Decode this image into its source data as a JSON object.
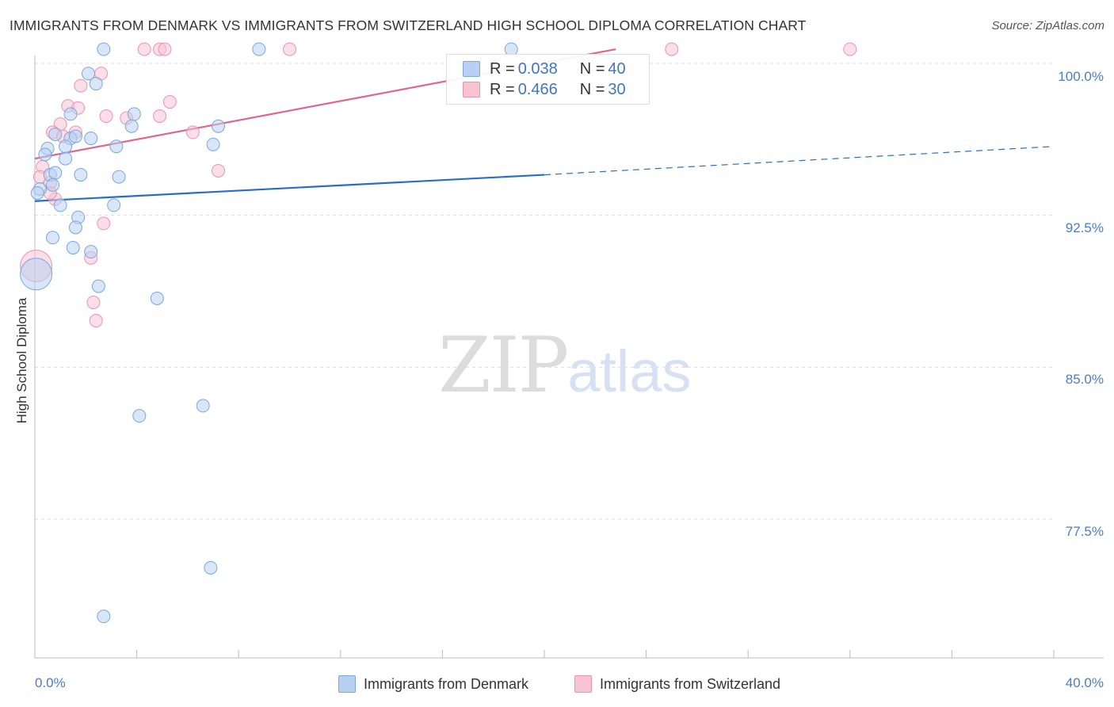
{
  "title": "IMMIGRANTS FROM DENMARK VS IMMIGRANTS FROM SWITZERLAND HIGH SCHOOL DIPLOMA CORRELATION CHART",
  "source": "Source: ZipAtlas.com",
  "watermark": {
    "zip": "ZIP",
    "atlas": "atlas"
  },
  "colors": {
    "denmark_fill": "#b8d1f3",
    "denmark_stroke": "#7aa6e2",
    "denmark_line": "#2a6ccc",
    "switzerland_fill": "#f7c3d3",
    "switzerland_stroke": "#ec93b0",
    "switzerland_line": "#e0668f",
    "tick_text": "#4a7bd0",
    "grid": "#dddddd"
  },
  "legend": {
    "rows": [
      {
        "r_label": "R = ",
        "r_value": "0.038",
        "n_label": "N = ",
        "n_value": "40"
      },
      {
        "r_label": "R = ",
        "r_value": "0.466",
        "n_label": "N = ",
        "n_value": "30"
      }
    ]
  },
  "chart_data": {
    "type": "scatter",
    "title": "IMMIGRANTS FROM DENMARK VS IMMIGRANTS FROM SWITZERLAND HIGH SCHOOL DIPLOMA CORRELATION CHART",
    "xlabel": "",
    "ylabel": "High School Diploma",
    "xlim": [
      0,
      40
    ],
    "ylim": [
      71,
      100.7
    ],
    "x_tick_labels": [
      "0.0%",
      "40.0%"
    ],
    "y_ticks": [
      77.5,
      85.0,
      92.5,
      100.0
    ],
    "y_tick_labels": [
      "77.5%",
      "85.0%",
      "92.5%",
      "100.0%"
    ],
    "legend_position": "bottom-center",
    "series": [
      {
        "name": "Immigrants from Denmark",
        "r": 0.038,
        "n": 40,
        "points": [
          [
            2.7,
            100.7
          ],
          [
            8.8,
            100.7
          ],
          [
            18.7,
            100.7
          ],
          [
            2.1,
            99.5
          ],
          [
            2.4,
            99.0
          ],
          [
            1.4,
            97.5
          ],
          [
            3.9,
            97.5
          ],
          [
            0.8,
            96.5
          ],
          [
            3.8,
            96.9
          ],
          [
            7.2,
            96.9
          ],
          [
            1.4,
            96.3
          ],
          [
            1.6,
            96.4
          ],
          [
            2.2,
            96.3
          ],
          [
            0.5,
            95.8
          ],
          [
            1.2,
            95.9
          ],
          [
            3.2,
            95.9
          ],
          [
            7.0,
            96.0
          ],
          [
            0.4,
            95.5
          ],
          [
            1.2,
            95.3
          ],
          [
            0.6,
            94.5
          ],
          [
            0.8,
            94.6
          ],
          [
            1.8,
            94.5
          ],
          [
            3.3,
            94.4
          ],
          [
            0.2,
            93.8
          ],
          [
            0.7,
            94.0
          ],
          [
            0.1,
            93.6
          ],
          [
            1.0,
            93.0
          ],
          [
            3.1,
            93.0
          ],
          [
            1.7,
            92.4
          ],
          [
            1.6,
            91.9
          ],
          [
            0.7,
            91.4
          ],
          [
            1.5,
            90.9
          ],
          [
            2.2,
            90.7
          ],
          [
            0.05,
            89.6
          ],
          [
            2.5,
            89.0
          ],
          [
            4.8,
            88.4
          ],
          [
            4.1,
            82.6
          ],
          [
            6.6,
            83.1
          ],
          [
            6.9,
            75.1
          ],
          [
            2.7,
            72.7
          ]
        ],
        "trend": {
          "x": [
            0,
            20
          ],
          "y": [
            93.2,
            94.5
          ]
        },
        "trend_extension": {
          "x": [
            20,
            40
          ],
          "y": [
            94.5,
            95.9
          ]
        }
      },
      {
        "name": "Immigrants from Switzerland",
        "r": 0.466,
        "n": 30,
        "points": [
          [
            4.3,
            100.7
          ],
          [
            4.9,
            100.7
          ],
          [
            5.1,
            100.7
          ],
          [
            10.0,
            100.7
          ],
          [
            25.0,
            100.7
          ],
          [
            32.0,
            100.7
          ],
          [
            2.6,
            99.5
          ],
          [
            1.8,
            98.9
          ],
          [
            1.3,
            97.9
          ],
          [
            5.3,
            98.1
          ],
          [
            1.7,
            97.8
          ],
          [
            2.8,
            97.4
          ],
          [
            3.6,
            97.3
          ],
          [
            4.9,
            97.4
          ],
          [
            1.0,
            97.0
          ],
          [
            0.7,
            96.6
          ],
          [
            1.6,
            96.6
          ],
          [
            6.2,
            96.6
          ],
          [
            1.1,
            96.4
          ],
          [
            0.3,
            94.9
          ],
          [
            0.2,
            94.4
          ],
          [
            0.6,
            94.1
          ],
          [
            7.2,
            94.7
          ],
          [
            0.8,
            93.3
          ],
          [
            2.7,
            92.1
          ],
          [
            2.2,
            90.4
          ],
          [
            0.05,
            90.0
          ],
          [
            2.3,
            88.2
          ],
          [
            2.4,
            87.3
          ],
          [
            0.6,
            93.6
          ]
        ],
        "trend": {
          "x": [
            0,
            22.8
          ],
          "y": [
            95.3,
            100.7
          ]
        }
      }
    ]
  },
  "bottom_legend": {
    "denmark": "Immigrants from Denmark",
    "switzerland": "Immigrants from Switzerland"
  }
}
